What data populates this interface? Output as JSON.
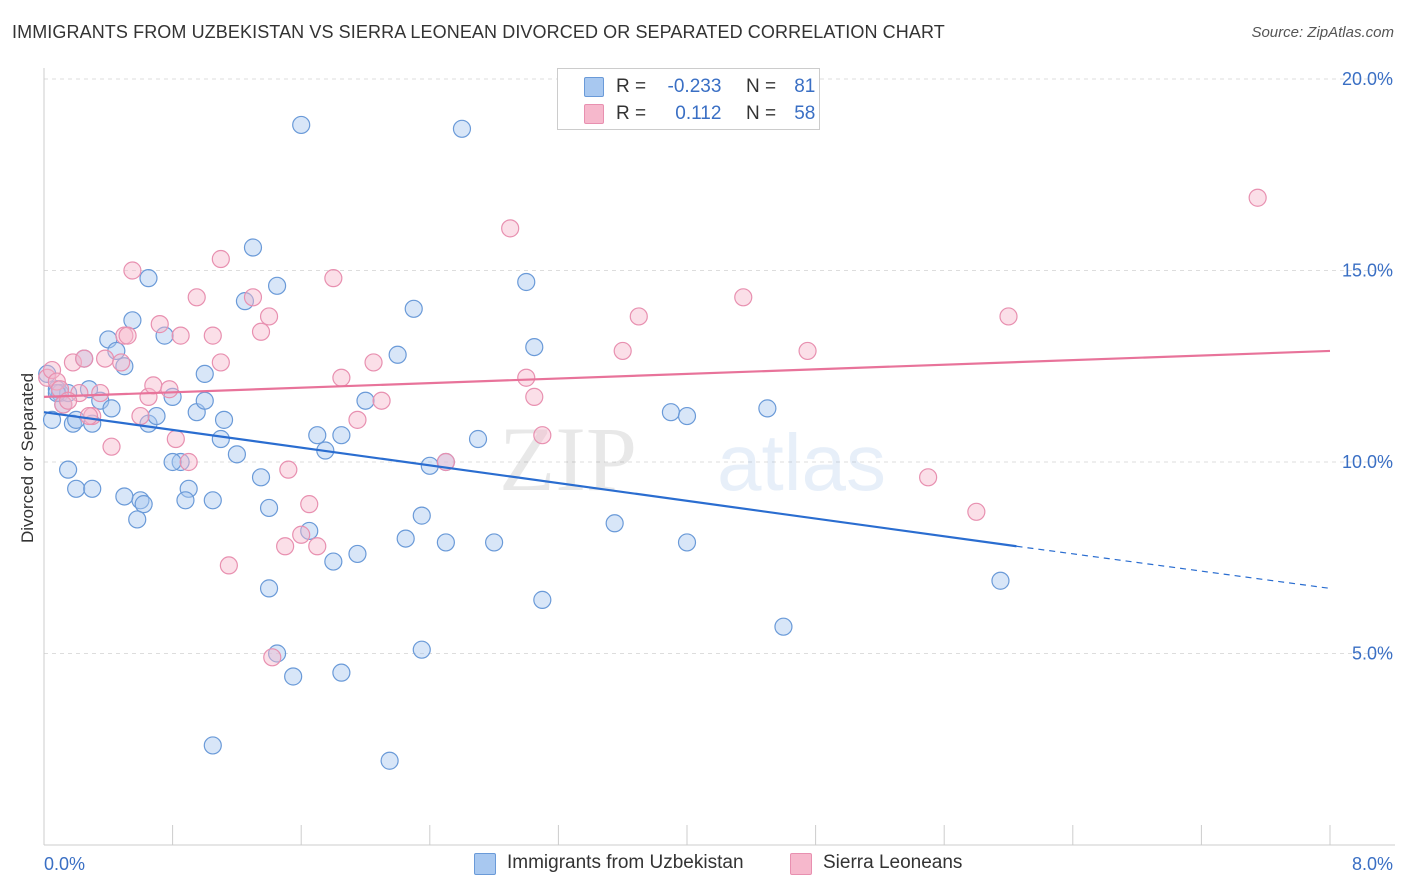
{
  "title": "IMMIGRANTS FROM UZBEKISTAN VS SIERRA LEONEAN DIVORCED OR SEPARATED CORRELATION CHART",
  "source": "Source: ZipAtlas.com",
  "watermark": {
    "zip": "ZIP",
    "atlas": "atlas"
  },
  "legend": {
    "rows": [
      {
        "r_label": "R =",
        "r_value": "-0.233",
        "n_label": "N =",
        "n_value": "81"
      },
      {
        "r_label": "R =",
        "r_value": "0.112",
        "n_label": "N =",
        "n_value": "58"
      }
    ]
  },
  "bottom_legend": {
    "series1": "Immigrants from Uzbekistan",
    "series2": "Sierra Leoneans"
  },
  "colors": {
    "series1_fill": "#a8c8f0",
    "series1_stroke": "#6a9ad8",
    "series1_line": "#2a6dd0",
    "series2_fill": "#f6b8cc",
    "series2_stroke": "#e890b0",
    "series2_line": "#e8739a",
    "grid": "#dddddd",
    "tick_text": "#3a6fc4"
  },
  "chart_data": {
    "type": "scatter",
    "ylabel": "Divorced or Separated",
    "xlim": [
      0,
      8
    ],
    "ylim": [
      0,
      20
    ],
    "x_tick_labels": [
      {
        "value": 0,
        "label": "0.0%"
      },
      {
        "value": 8,
        "label": "8.0%"
      }
    ],
    "y_tick_labels": [
      {
        "value": 5,
        "label": "5.0%"
      },
      {
        "value": 10,
        "label": "10.0%"
      },
      {
        "value": 15,
        "label": "15.0%"
      },
      {
        "value": 20,
        "label": "20.0%"
      }
    ],
    "grid": "horizontal dashed",
    "series": [
      {
        "name": "Immigrants from Uzbekistan",
        "r": -0.233,
        "n": 81,
        "trend": {
          "x0": 0.0,
          "y0": 11.3,
          "x1": 6.05,
          "y1": 7.8,
          "dash_to_x": 8.0,
          "dash_to_y": 6.7
        },
        "points": [
          [
            0.02,
            12.3
          ],
          [
            0.05,
            11.1
          ],
          [
            0.08,
            11.9
          ],
          [
            0.1,
            11.8
          ],
          [
            0.12,
            11.5
          ],
          [
            0.15,
            11.8
          ],
          [
            0.18,
            11.0
          ],
          [
            0.2,
            11.1
          ],
          [
            0.25,
            12.7
          ],
          [
            0.28,
            11.9
          ],
          [
            0.3,
            11.0
          ],
          [
            0.35,
            11.6
          ],
          [
            0.4,
            13.2
          ],
          [
            0.42,
            11.4
          ],
          [
            0.45,
            12.9
          ],
          [
            0.5,
            12.5
          ],
          [
            0.55,
            13.7
          ],
          [
            0.6,
            9.0
          ],
          [
            0.62,
            8.9
          ],
          [
            0.65,
            11.0
          ],
          [
            0.7,
            11.2
          ],
          [
            0.75,
            13.3
          ],
          [
            0.8,
            11.7
          ],
          [
            0.85,
            10.0
          ],
          [
            0.9,
            9.3
          ],
          [
            0.95,
            11.3
          ],
          [
            1.0,
            12.3
          ],
          [
            1.05,
            9.0
          ],
          [
            1.1,
            10.6
          ],
          [
            1.12,
            11.1
          ],
          [
            1.2,
            10.2
          ],
          [
            1.25,
            14.2
          ],
          [
            1.3,
            15.6
          ],
          [
            1.35,
            9.6
          ],
          [
            1.4,
            8.8
          ],
          [
            1.45,
            14.6
          ],
          [
            1.6,
            18.8
          ],
          [
            1.65,
            8.2
          ],
          [
            1.7,
            10.7
          ],
          [
            1.75,
            10.3
          ],
          [
            1.8,
            7.4
          ],
          [
            1.85,
            10.7
          ],
          [
            1.95,
            7.6
          ],
          [
            2.0,
            11.6
          ],
          [
            2.2,
            12.8
          ],
          [
            2.25,
            8.0
          ],
          [
            2.3,
            14.0
          ],
          [
            2.35,
            8.6
          ],
          [
            2.4,
            9.9
          ],
          [
            2.5,
            10.0
          ],
          [
            2.5,
            7.9
          ],
          [
            2.6,
            18.7
          ],
          [
            2.7,
            10.6
          ],
          [
            2.8,
            7.9
          ],
          [
            3.0,
            14.7
          ],
          [
            3.05,
            13.0
          ],
          [
            3.1,
            6.4
          ],
          [
            3.55,
            8.4
          ],
          [
            3.9,
            11.3
          ],
          [
            4.0,
            11.2
          ],
          [
            4.0,
            7.9
          ],
          [
            4.5,
            11.4
          ],
          [
            4.6,
            5.7
          ],
          [
            5.95,
            6.9
          ],
          [
            0.15,
            9.8
          ],
          [
            0.2,
            9.3
          ],
          [
            0.3,
            9.3
          ],
          [
            0.5,
            9.1
          ],
          [
            0.58,
            8.5
          ],
          [
            0.8,
            10.0
          ],
          [
            0.88,
            9.0
          ],
          [
            1.45,
            5.0
          ],
          [
            1.55,
            4.4
          ],
          [
            1.85,
            4.5
          ],
          [
            2.35,
            5.1
          ],
          [
            1.05,
            2.6
          ],
          [
            2.15,
            2.2
          ],
          [
            1.4,
            6.7
          ],
          [
            0.65,
            14.8
          ],
          [
            1.0,
            11.6
          ],
          [
            0.08,
            11.8
          ]
        ]
      },
      {
        "name": "Sierra Leoneans",
        "r": 0.112,
        "n": 58,
        "trend": {
          "x0": 0.0,
          "y0": 11.7,
          "x1": 8.0,
          "y1": 12.9
        },
        "points": [
          [
            0.02,
            12.2
          ],
          [
            0.05,
            12.4
          ],
          [
            0.08,
            12.1
          ],
          [
            0.1,
            11.9
          ],
          [
            0.12,
            11.5
          ],
          [
            0.18,
            12.6
          ],
          [
            0.22,
            11.8
          ],
          [
            0.25,
            12.7
          ],
          [
            0.3,
            11.2
          ],
          [
            0.35,
            11.8
          ],
          [
            0.38,
            12.7
          ],
          [
            0.42,
            10.4
          ],
          [
            0.48,
            12.6
          ],
          [
            0.5,
            13.3
          ],
          [
            0.52,
            13.3
          ],
          [
            0.55,
            15.0
          ],
          [
            0.6,
            11.2
          ],
          [
            0.65,
            11.7
          ],
          [
            0.68,
            12.0
          ],
          [
            0.72,
            13.6
          ],
          [
            0.78,
            11.9
          ],
          [
            0.82,
            10.6
          ],
          [
            0.85,
            13.3
          ],
          [
            0.9,
            10.0
          ],
          [
            0.95,
            14.3
          ],
          [
            1.05,
            13.3
          ],
          [
            1.1,
            12.6
          ],
          [
            1.1,
            15.3
          ],
          [
            1.15,
            7.3
          ],
          [
            1.3,
            14.3
          ],
          [
            1.35,
            13.4
          ],
          [
            1.4,
            13.8
          ],
          [
            1.42,
            4.9
          ],
          [
            1.5,
            7.8
          ],
          [
            1.52,
            9.8
          ],
          [
            1.6,
            8.1
          ],
          [
            1.65,
            8.9
          ],
          [
            1.7,
            7.8
          ],
          [
            1.8,
            14.8
          ],
          [
            1.85,
            12.2
          ],
          [
            1.95,
            11.1
          ],
          [
            2.05,
            12.6
          ],
          [
            2.1,
            11.6
          ],
          [
            2.5,
            10.0
          ],
          [
            2.9,
            16.1
          ],
          [
            3.0,
            12.2
          ],
          [
            3.05,
            11.7
          ],
          [
            3.1,
            10.7
          ],
          [
            3.6,
            12.9
          ],
          [
            3.7,
            13.8
          ],
          [
            4.35,
            14.3
          ],
          [
            4.75,
            12.9
          ],
          [
            5.5,
            9.6
          ],
          [
            5.8,
            8.7
          ],
          [
            6.0,
            13.8
          ],
          [
            7.55,
            16.9
          ],
          [
            0.15,
            11.6
          ],
          [
            0.28,
            11.2
          ]
        ]
      }
    ]
  }
}
